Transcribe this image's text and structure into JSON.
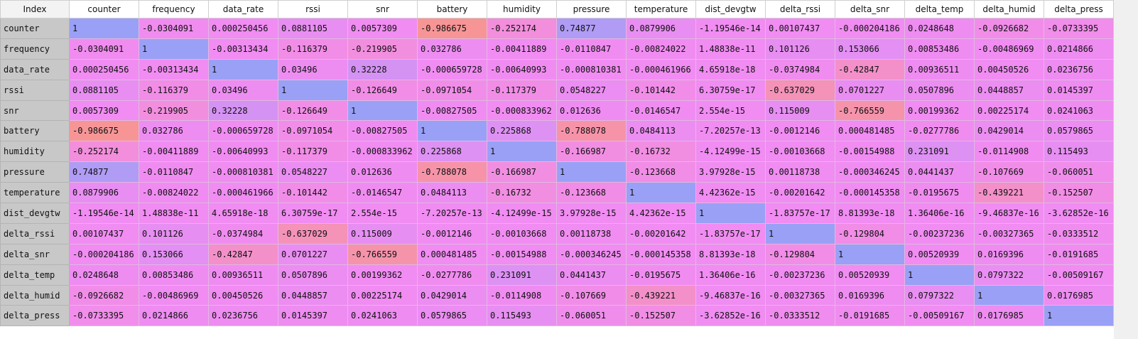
{
  "table": {
    "index_header": "Index",
    "columns": [
      "counter",
      "frequency",
      "data_rate",
      "rssi",
      "snr",
      "battery",
      "humidity",
      "pressure",
      "temperature",
      "dist_devgtw",
      "delta_rssi",
      "delta_snr",
      "delta_temp",
      "delta_humid",
      "delta_press"
    ],
    "rows": [
      {
        "label": "counter",
        "values": [
          "1",
          "-0.0304091",
          "0.000250456",
          "0.0881105",
          "0.0057309",
          "-0.986675",
          "-0.252174",
          "0.74877",
          "0.0879906",
          "-1.19546e-14",
          "0.00107437",
          "-0.000204186",
          "0.0248648",
          "-0.0926682",
          "-0.0733395"
        ]
      },
      {
        "label": "frequency",
        "values": [
          "-0.0304091",
          "1",
          "-0.00313434",
          "-0.116379",
          "-0.219905",
          "0.032786",
          "-0.00411889",
          "-0.0110847",
          "-0.00824022",
          "1.48838e-11",
          "0.101126",
          "0.153066",
          "0.00853486",
          "-0.00486969",
          "0.0214866"
        ]
      },
      {
        "label": "data_rate",
        "values": [
          "0.000250456",
          "-0.00313434",
          "1",
          "0.03496",
          "0.32228",
          "-0.000659728",
          "-0.00640993",
          "-0.000810381",
          "-0.000461966",
          "4.65918e-18",
          "-0.0374984",
          "-0.42847",
          "0.00936511",
          "0.00450526",
          "0.0236756"
        ]
      },
      {
        "label": "rssi",
        "values": [
          "0.0881105",
          "-0.116379",
          "0.03496",
          "1",
          "-0.126649",
          "-0.0971054",
          "-0.117379",
          "0.0548227",
          "-0.101442",
          "6.30759e-17",
          "-0.637029",
          "0.0701227",
          "0.0507896",
          "0.0448857",
          "0.0145397"
        ]
      },
      {
        "label": "snr",
        "values": [
          "0.0057309",
          "-0.219905",
          "0.32228",
          "-0.126649",
          "1",
          "-0.00827505",
          "-0.000833962",
          "0.012636",
          "-0.0146547",
          "2.554e-15",
          "0.115009",
          "-0.766559",
          "0.00199362",
          "0.00225174",
          "0.0241063"
        ]
      },
      {
        "label": "battery",
        "values": [
          "-0.986675",
          "0.032786",
          "-0.000659728",
          "-0.0971054",
          "-0.00827505",
          "1",
          "0.225868",
          "-0.788078",
          "0.0484113",
          "-7.20257e-13",
          "-0.0012146",
          "0.000481485",
          "-0.0277786",
          "0.0429014",
          "0.0579865"
        ]
      },
      {
        "label": "humidity",
        "values": [
          "-0.252174",
          "-0.00411889",
          "-0.00640993",
          "-0.117379",
          "-0.000833962",
          "0.225868",
          "1",
          "-0.166987",
          "-0.16732",
          "-4.12499e-15",
          "-0.00103668",
          "-0.00154988",
          "0.231091",
          "-0.0114908",
          "0.115493"
        ]
      },
      {
        "label": "pressure",
        "values": [
          "0.74877",
          "-0.0110847",
          "-0.000810381",
          "0.0548227",
          "0.012636",
          "-0.788078",
          "-0.166987",
          "1",
          "-0.123668",
          "3.97928e-15",
          "0.00118738",
          "-0.000346245",
          "0.0441437",
          "-0.107669",
          "-0.060051"
        ]
      },
      {
        "label": "temperature",
        "values": [
          "0.0879906",
          "-0.00824022",
          "-0.000461966",
          "-0.101442",
          "-0.0146547",
          "0.0484113",
          "-0.16732",
          "-0.123668",
          "1",
          "4.42362e-15",
          "-0.00201642",
          "-0.000145358",
          "-0.0195675",
          "-0.439221",
          "-0.152507"
        ]
      },
      {
        "label": "dist_devgtw",
        "values": [
          "-1.19546e-14",
          "1.48838e-11",
          "4.65918e-18",
          "6.30759e-17",
          "2.554e-15",
          "-7.20257e-13",
          "-4.12499e-15",
          "3.97928e-15",
          "4.42362e-15",
          "1",
          "-1.83757e-17",
          "8.81393e-18",
          "1.36406e-16",
          "-9.46837e-16",
          "-3.62852e-16"
        ]
      },
      {
        "label": "delta_rssi",
        "values": [
          "0.00107437",
          "0.101126",
          "-0.0374984",
          "-0.637029",
          "0.115009",
          "-0.0012146",
          "-0.00103668",
          "0.00118738",
          "-0.00201642",
          "-1.83757e-17",
          "1",
          "-0.129804",
          "-0.00237236",
          "-0.00327365",
          "-0.0333512"
        ]
      },
      {
        "label": "delta_snr",
        "values": [
          "-0.000204186",
          "0.153066",
          "-0.42847",
          "0.0701227",
          "-0.766559",
          "0.000481485",
          "-0.00154988",
          "-0.000346245",
          "-0.000145358",
          "8.81393e-18",
          "-0.129804",
          "1",
          "0.00520939",
          "0.0169396",
          "-0.0191685"
        ]
      },
      {
        "label": "delta_temp",
        "values": [
          "0.0248648",
          "0.00853486",
          "0.00936511",
          "0.0507896",
          "0.00199362",
          "-0.0277786",
          "0.231091",
          "0.0441437",
          "-0.0195675",
          "1.36406e-16",
          "-0.00237236",
          "0.00520939",
          "1",
          "0.0797322",
          "-0.00509167"
        ]
      },
      {
        "label": "delta_humid",
        "values": [
          "-0.0926682",
          "-0.00486969",
          "0.00450526",
          "0.0448857",
          "0.00225174",
          "0.0429014",
          "-0.0114908",
          "-0.107669",
          "-0.439221",
          "-9.46837e-16",
          "-0.00327365",
          "0.0169396",
          "0.0797322",
          "1",
          "0.0176985"
        ]
      },
      {
        "label": "delta_press",
        "values": [
          "-0.0733395",
          "0.0214866",
          "0.0236756",
          "0.0145397",
          "0.0241063",
          "0.0579865",
          "0.115493",
          "-0.060051",
          "-0.152507",
          "-3.62852e-16",
          "-0.0333512",
          "-0.0191685",
          "-0.00509167",
          "0.0176985",
          "1"
        ]
      }
    ]
  },
  "colors": {
    "high": "#9aa0f6",
    "zero": "#f08cf2",
    "low": "#f79595"
  }
}
